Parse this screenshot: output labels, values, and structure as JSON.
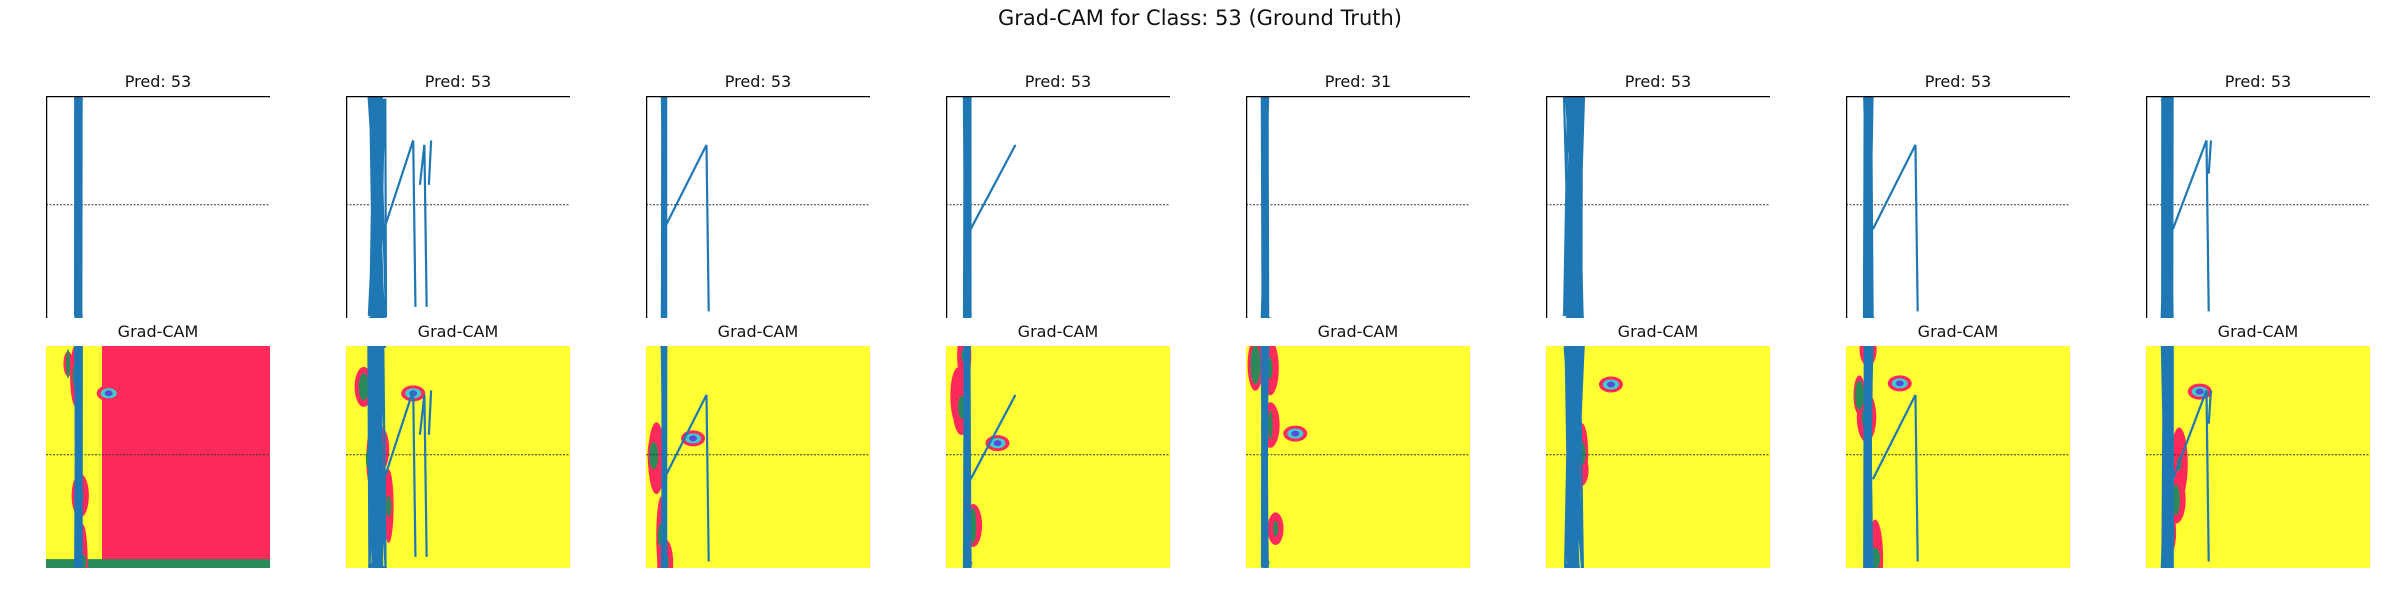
{
  "figure": {
    "title": "Grad-CAM for Class: 53 (Ground Truth)"
  },
  "colors": {
    "signal": "#1f77b4",
    "heat_low": "#ffff33",
    "heat_high": "#ff2a5c",
    "heat_mid_green": "#2a8a5a",
    "heat_mid_cyan": "#3ad0d0",
    "heat_peak": "#5a4bd8",
    "baseline": "#333333",
    "axis": "#000000"
  },
  "chart_data": {
    "type": "line",
    "panels": [
      {
        "pred_label": "Pred: 53",
        "cam_label": "Grad-CAM",
        "heat_background": "high"
      },
      {
        "pred_label": "Pred: 53",
        "cam_label": "Grad-CAM",
        "heat_background": "mixed"
      },
      {
        "pred_label": "Pred: 53",
        "cam_label": "Grad-CAM",
        "heat_background": "low"
      },
      {
        "pred_label": "Pred: 53",
        "cam_label": "Grad-CAM",
        "heat_background": "low"
      },
      {
        "pred_label": "Pred: 31",
        "cam_label": "Grad-CAM",
        "heat_background": "low"
      },
      {
        "pred_label": "Pred: 53",
        "cam_label": "Grad-CAM",
        "heat_background": "low"
      },
      {
        "pred_label": "Pred: 53",
        "cam_label": "Grad-CAM",
        "heat_background": "low"
      },
      {
        "pred_label": "Pred: 53",
        "cam_label": "Grad-CAM",
        "heat_background": "low"
      }
    ]
  }
}
